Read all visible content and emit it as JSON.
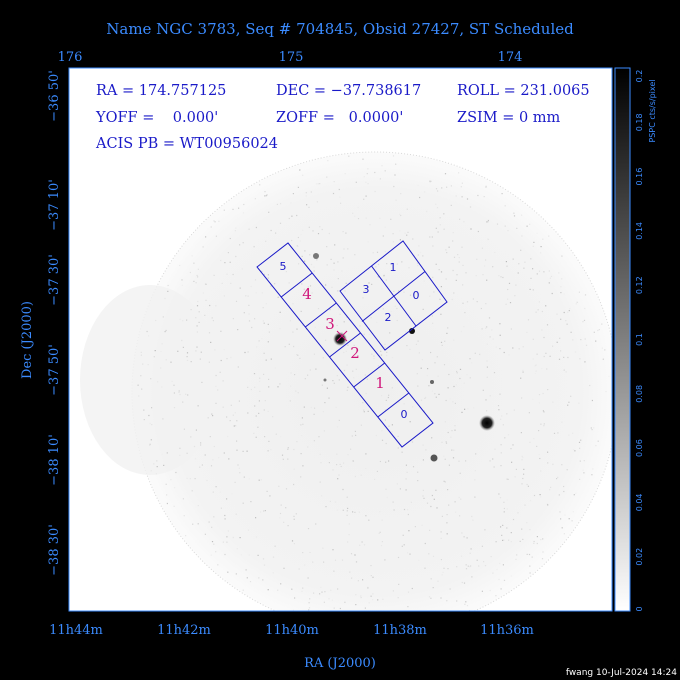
{
  "title": "Name NGC 3783, Seq # 704845, Obsid 27427, ST Scheduled",
  "info": {
    "ra": "RA = 174.757125",
    "dec": "DEC = −37.738617",
    "roll": "ROLL = 231.0065",
    "yoff": "YOFF =    0.000'",
    "zoff": "ZOFF =   0.0000'",
    "zsim": "ZSIM = 0 mm",
    "acis": "ACIS PB = WT00956024"
  },
  "top_axis": {
    "labels": [
      "176",
      "175",
      "174"
    ]
  },
  "bottom_axis": {
    "labels": [
      "11h44m",
      "11h42m",
      "11h40m",
      "11h38m",
      "11h36m"
    ],
    "title": "RA (J2000)"
  },
  "left_axis": {
    "labels": [
      "−36 50'",
      "−37 10'",
      "−37 30'",
      "−37 50'",
      "−38 10'",
      "−38 30'"
    ],
    "title": "Dec (J2000)"
  },
  "colorbar": {
    "labels": [
      "0",
      "0.02",
      "0.04",
      "0.06",
      "0.08",
      "0.1",
      "0.12",
      "0.14",
      "0.16",
      "0.18",
      "0.2"
    ],
    "title": "PSPC cts/s/pixel"
  },
  "chips_i": [
    "0",
    "1",
    "2",
    "3"
  ],
  "chips_s": [
    "0",
    "1",
    "2",
    "3",
    "4",
    "5"
  ],
  "credit": "fwang 10-Jul-2024 14:24",
  "colors": {
    "background": "#000000",
    "frame": "#ffffff",
    "axis_text": "#3b8bff",
    "info_text": "#1a1ac8",
    "chip_outline": "#1a1ac8",
    "chip_highlight": "#d0157a"
  }
}
